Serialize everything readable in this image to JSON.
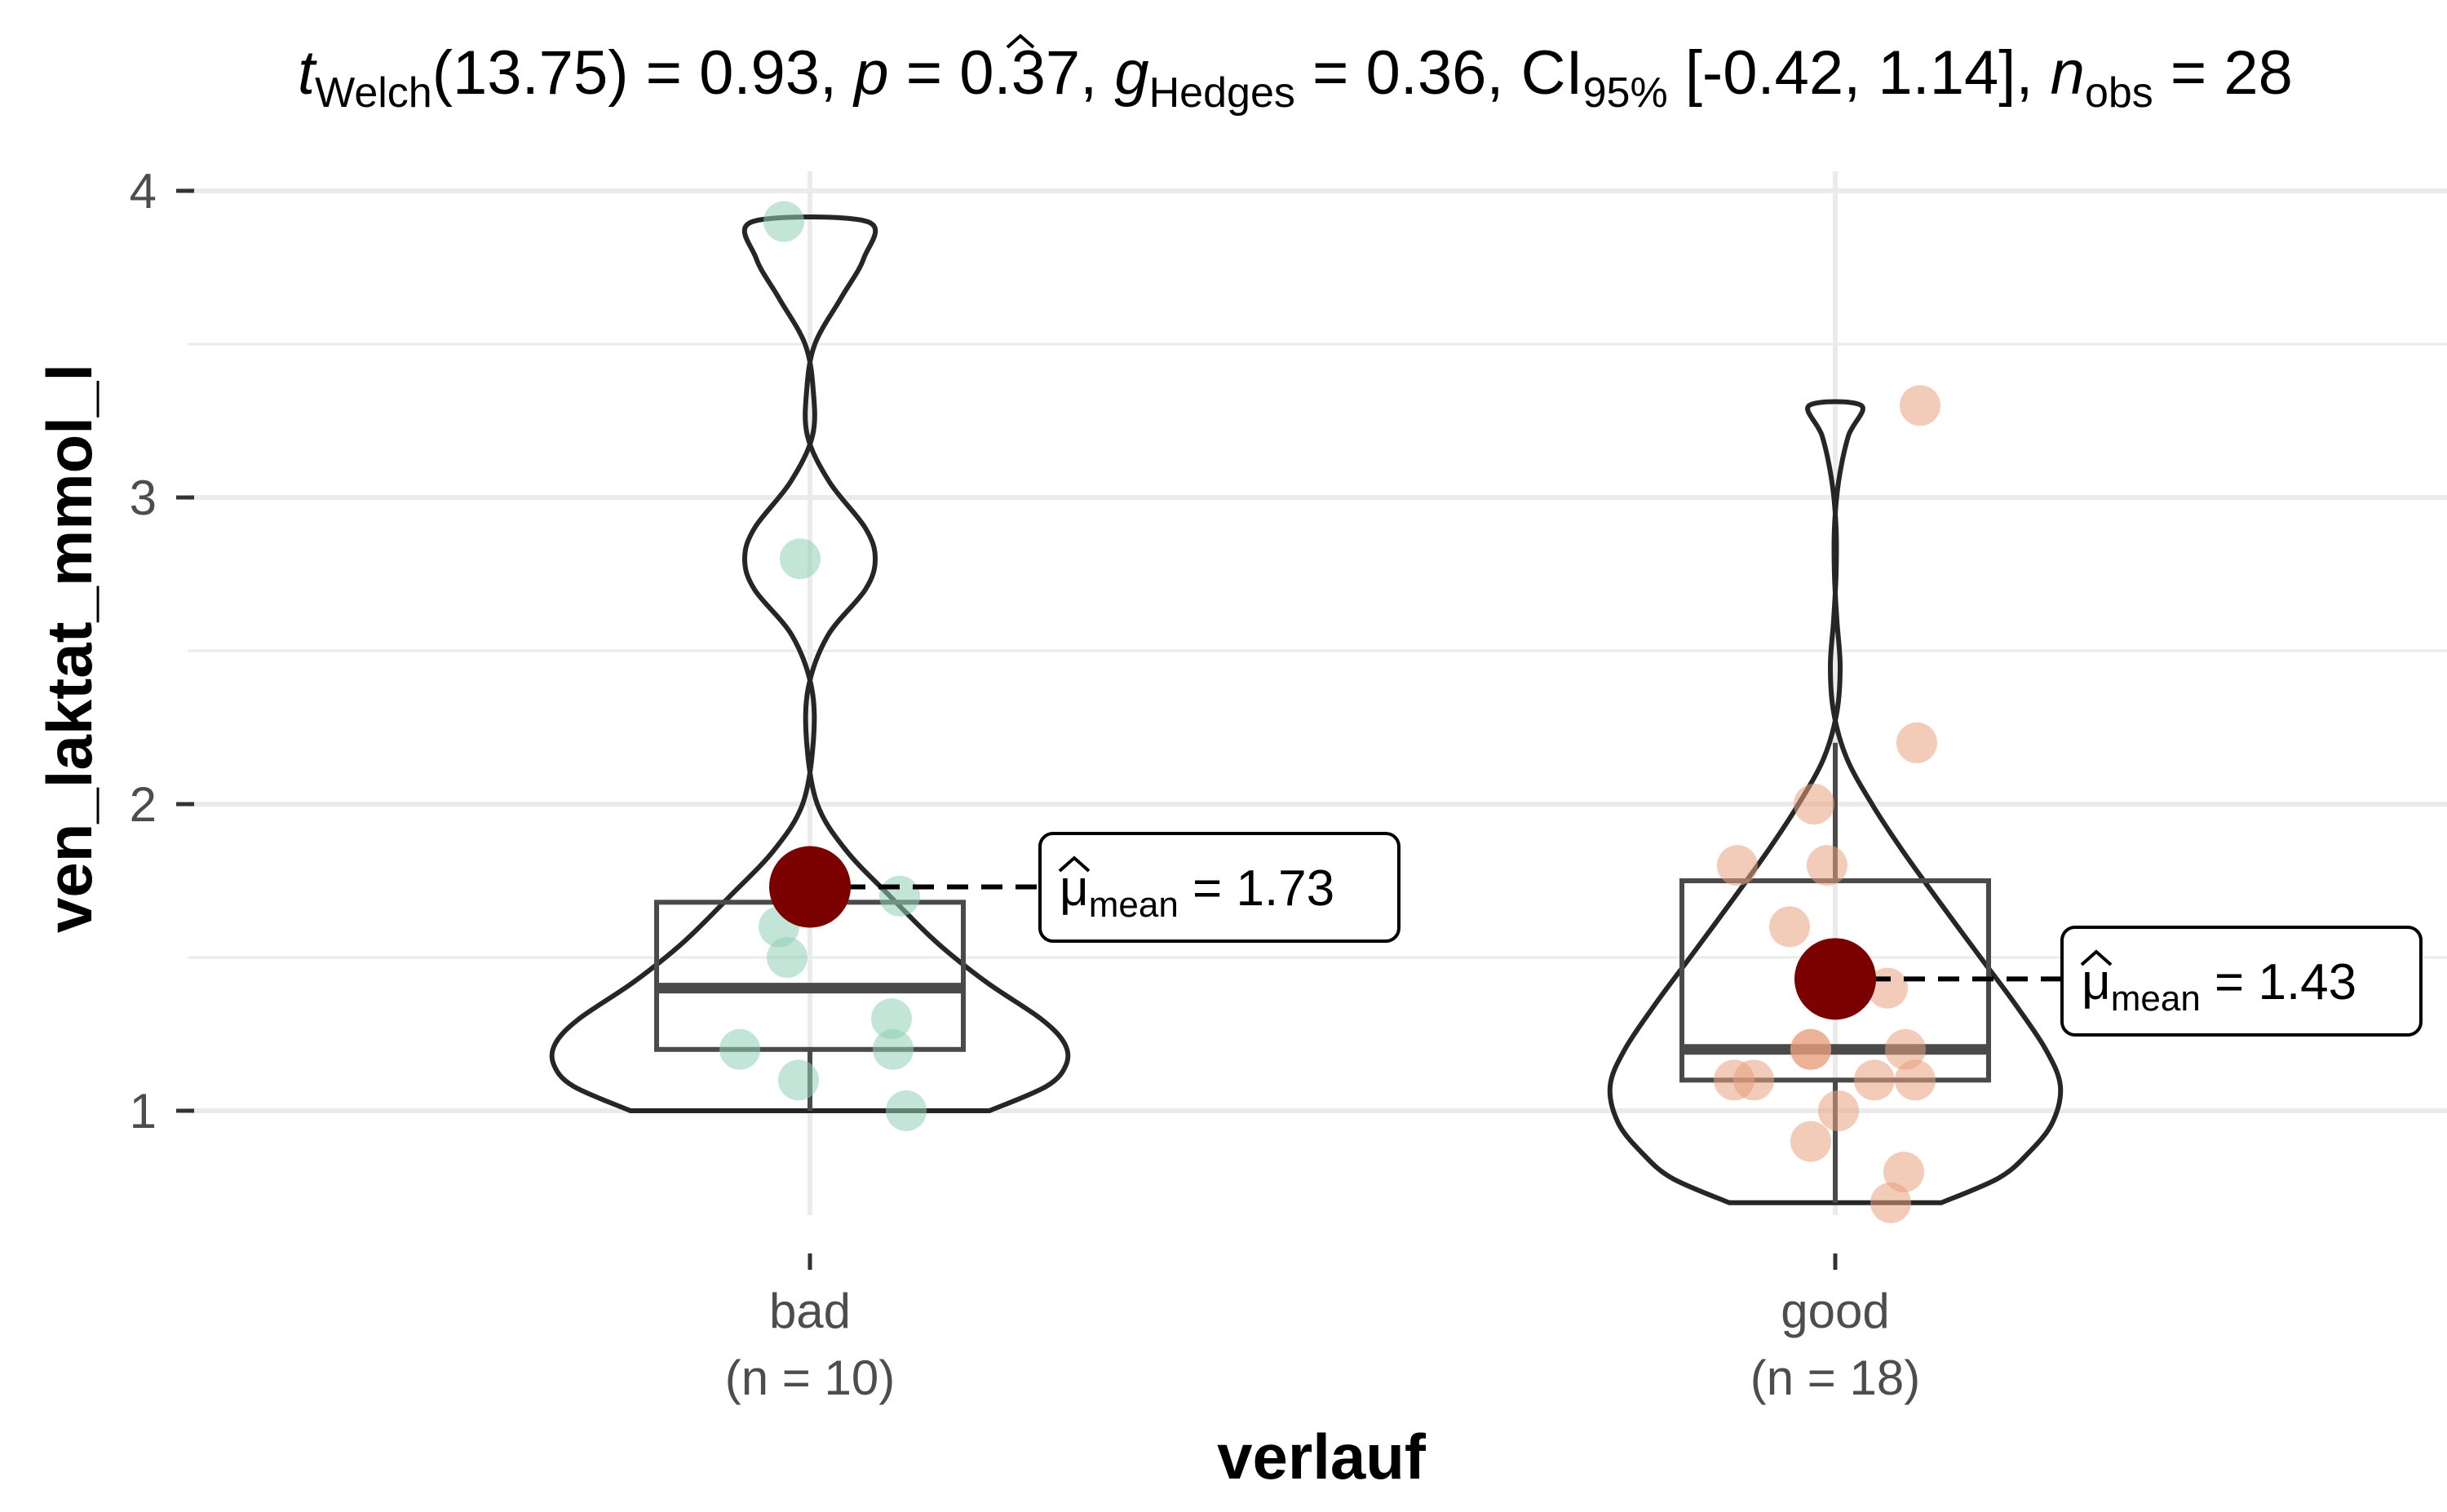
{
  "colors": {
    "bad": "#8FCFB6",
    "good": "#E8A07F",
    "mean_point": "#7B0000",
    "grid": "#EBEBEB",
    "line": "#262626",
    "box": "#4a4a4a"
  },
  "title_parts": {
    "t_symbol": "t",
    "t_sub": "Welch",
    "t_stat": "(13.75) = 0.93, ",
    "p_symbol": "p",
    "p_stat": " = 0.37, ",
    "g_symbol": "g",
    "g_sub": "Hedges",
    "g_stat": " = 0.36, CI",
    "ci_sub": "95%",
    "ci_stat": " [-0.42, 1.14], ",
    "n_symbol": "n",
    "n_sub": "obs",
    "n_stat": " = 28"
  },
  "chart_data": {
    "type": "violin",
    "xlabel": "verlauf",
    "ylabel": "ven_laktat_mmol_l",
    "ylim": [
      0.55,
      4.1
    ],
    "yticks": [
      "1",
      "2",
      "3",
      "4"
    ],
    "minor_gridlines": [
      1.5,
      2.5,
      3.5
    ],
    "grid": true,
    "groups": [
      {
        "name": "bad",
        "tick_label_line1": "bad",
        "tick_label_line2": "(n = 10)",
        "n": 10,
        "points": [
          3.9,
          2.8,
          1.7,
          1.6,
          1.5,
          1.3,
          1.2,
          1.2,
          1.1,
          1.0
        ],
        "box": {
          "q1": 1.2,
          "median": 1.4,
          "q3": 1.68,
          "whisker_low": 1.0,
          "whisker_high": 1.68
        },
        "violin_min": 1.0,
        "violin_max": 3.9,
        "mean": 1.73,
        "mean_symbol": "μ",
        "mean_sub": "mean",
        "mean_text": " = 1.73"
      },
      {
        "name": "good",
        "tick_label_line1": "good",
        "tick_label_line2": "(n = 18)",
        "n": 18,
        "points": [
          3.3,
          2.2,
          2.0,
          1.8,
          1.8,
          1.6,
          1.4,
          1.2,
          1.2,
          1.1,
          1.1,
          1.1,
          1.1,
          1.0,
          0.9,
          0.8,
          0.7,
          1.2
        ],
        "box": {
          "q1": 1.1,
          "median": 1.2,
          "q3": 1.75,
          "whisker_low": 0.7,
          "whisker_high": 2.2
        },
        "violin_min": 0.7,
        "violin_max": 3.3,
        "mean": 1.43,
        "mean_symbol": "μ",
        "mean_sub": "mean",
        "mean_text": " = 1.43"
      }
    ]
  }
}
